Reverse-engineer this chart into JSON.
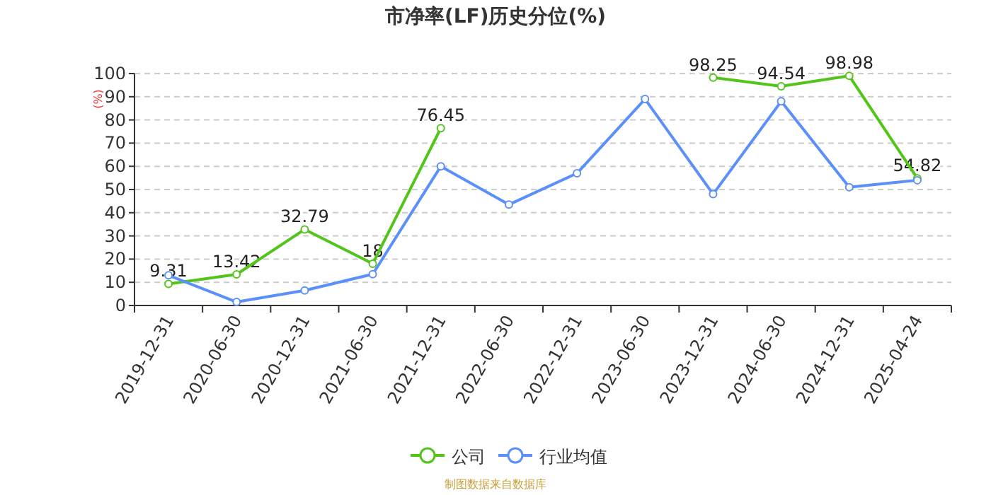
{
  "chart_data": {
    "type": "line",
    "title": "市净率(LF)历史分位(%)",
    "ylabel": "(%)",
    "categories": [
      "2019-12-31",
      "2020-06-30",
      "2020-12-31",
      "2021-06-30",
      "2021-12-31",
      "2022-06-30",
      "2022-12-31",
      "2023-06-30",
      "2023-12-31",
      "2024-06-30",
      "2024-12-31",
      "2025-04-24"
    ],
    "series": [
      {
        "name": "公司",
        "color": "#52c41a",
        "values": [
          9.31,
          13.42,
          32.79,
          18,
          76.45,
          null,
          null,
          null,
          98.25,
          94.54,
          98.98,
          54.82
        ],
        "value_labels": [
          "9.31",
          "13.42",
          "32.79",
          "18",
          "76.45",
          null,
          null,
          null,
          "98.25",
          "94.54",
          "98.98",
          "54.82"
        ]
      },
      {
        "name": "行业均值",
        "color": "#5b8ff9",
        "values": [
          13,
          1.5,
          6.5,
          13.5,
          60,
          43.5,
          57,
          89,
          48,
          88,
          51,
          54
        ]
      }
    ],
    "ylim": [
      0,
      100
    ],
    "yticks": [
      0,
      10,
      20,
      30,
      40,
      50,
      60,
      70,
      80,
      90,
      100
    ],
    "grid": "y",
    "legend": "bottom",
    "marker": "circle",
    "line_style": "solid",
    "annotations": [
      "制图数据来自数据库"
    ]
  }
}
